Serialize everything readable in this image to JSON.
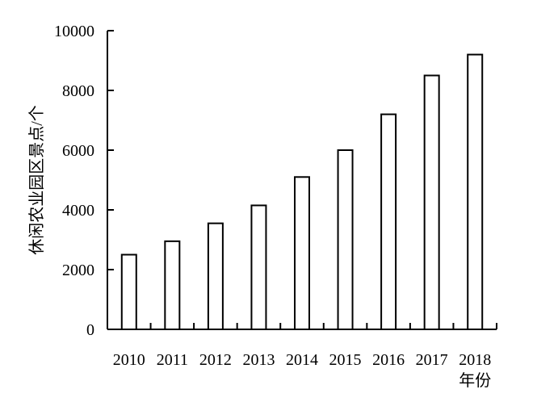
{
  "chart_data": {
    "type": "bar",
    "categories": [
      "2010",
      "2011",
      "2012",
      "2013",
      "2014",
      "2015",
      "2016",
      "2017",
      "2018"
    ],
    "values": [
      2500,
      2950,
      3550,
      4150,
      5100,
      6000,
      7200,
      8500,
      9200
    ],
    "title": "",
    "xlabel": "年份",
    "ylabel": "休闲农业园区景点/个",
    "ylim": [
      0,
      10000
    ],
    "yticks": [
      0,
      2000,
      4000,
      6000,
      8000,
      10000
    ],
    "grid": false,
    "legend": "none",
    "colors": {
      "bar_fill": "#ffffff",
      "bar_stroke": "#000000",
      "axis": "#000000"
    }
  }
}
